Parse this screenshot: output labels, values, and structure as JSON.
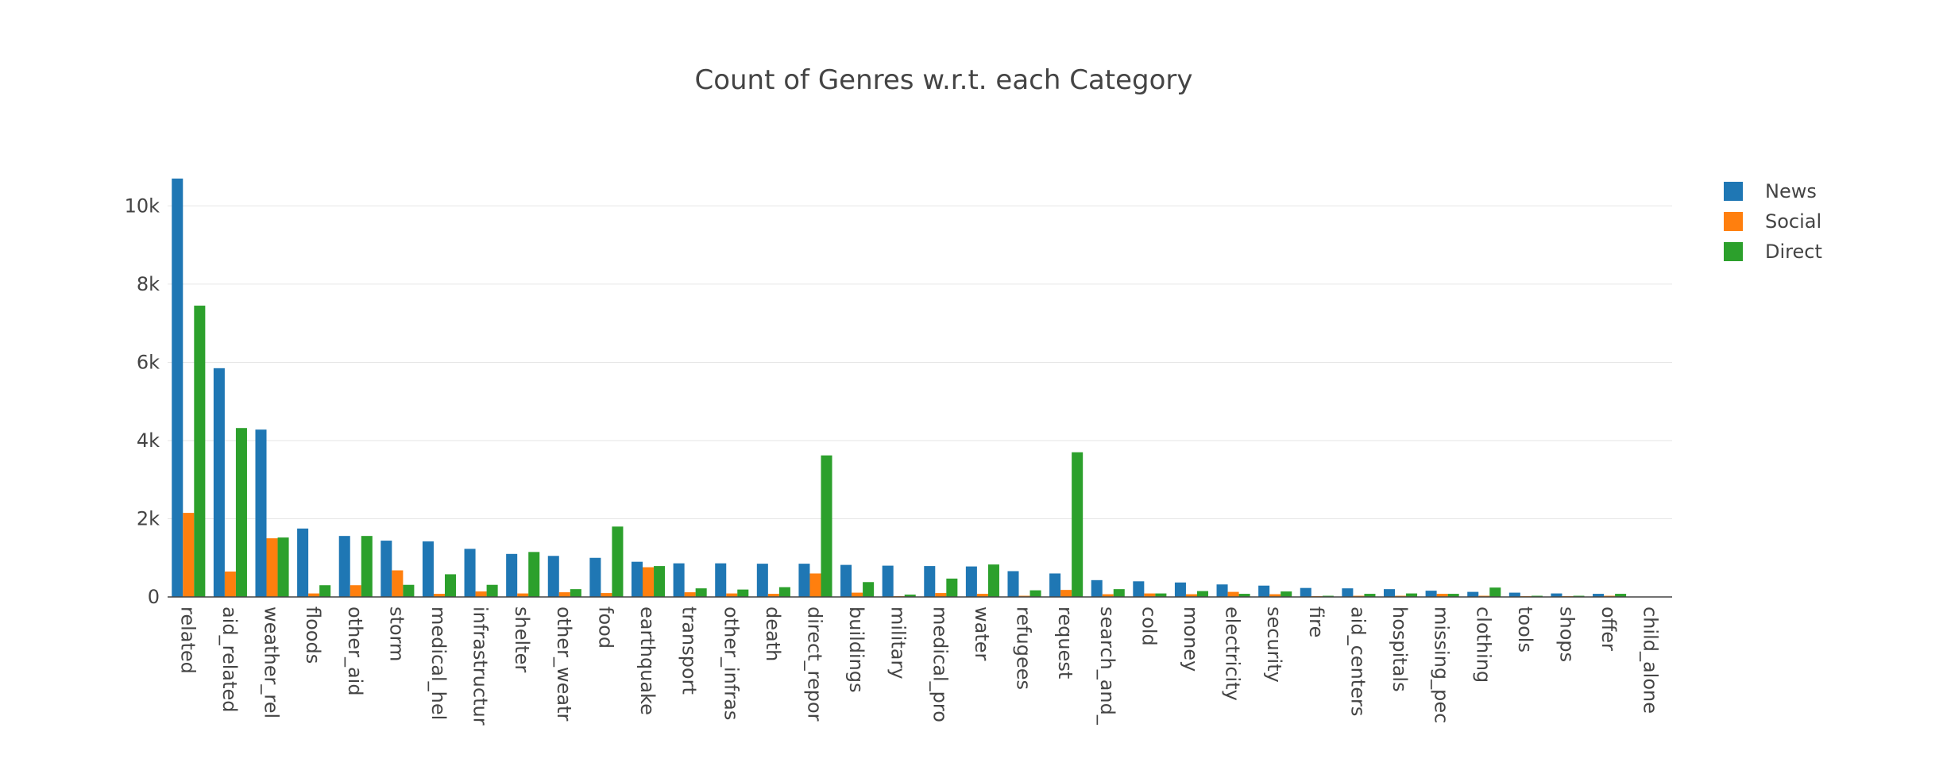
{
  "chart_data": {
    "type": "bar",
    "title": "Count of Genres w.r.t. each Category",
    "xlabel": "",
    "ylabel": "",
    "ylim": [
      0,
      10800
    ],
    "yticks": [
      0,
      2000,
      4000,
      6000,
      8000,
      10000
    ],
    "ytick_labels": [
      "0",
      "2k",
      "4k",
      "6k",
      "8k",
      "10k"
    ],
    "grid": true,
    "legend_position": "top-right",
    "categories": [
      "related",
      "aid_related",
      "weather_related",
      "floods",
      "other_aid",
      "storm",
      "medical_help",
      "infrastructure_related",
      "shelter",
      "other_weather",
      "food",
      "earthquake",
      "transport",
      "other_infrastructure",
      "death",
      "direct_report",
      "buildings",
      "military",
      "medical_products",
      "water",
      "refugees",
      "request",
      "search_and_rescue",
      "cold",
      "money",
      "electricity",
      "security",
      "fire",
      "aid_centers",
      "hospitals",
      "missing_people",
      "clothing",
      "tools",
      "shops",
      "offer",
      "child_alone"
    ],
    "category_labels": [
      "related",
      "aid_related",
      "weather_rel",
      "floods",
      "other_aid",
      "storm",
      "medical_hel",
      "infrastructur",
      "shelter",
      "other_weatr",
      "food",
      "earthquake",
      "transport",
      "other_infras",
      "death",
      "direct_repor",
      "buildings",
      "military",
      "medical_pro",
      "water",
      "refugees",
      "request",
      "search_and_",
      "cold",
      "money",
      "electricity",
      "security",
      "fire",
      "aid_centers",
      "hospitals",
      "missing_pec",
      "clothing",
      "tools",
      "shops",
      "offer",
      "child_alone"
    ],
    "series": [
      {
        "name": "News",
        "color": "#1f77b4",
        "values": [
          10700,
          5850,
          4280,
          1750,
          1560,
          1440,
          1420,
          1230,
          1100,
          1050,
          1000,
          900,
          860,
          860,
          850,
          850,
          820,
          800,
          790,
          780,
          660,
          600,
          430,
          400,
          370,
          320,
          290,
          230,
          220,
          200,
          160,
          130,
          110,
          90,
          80,
          0
        ]
      },
      {
        "name": "Social",
        "color": "#ff7f0e",
        "values": [
          2150,
          650,
          1500,
          90,
          300,
          680,
          80,
          140,
          90,
          120,
          100,
          760,
          120,
          90,
          80,
          600,
          110,
          20,
          100,
          80,
          30,
          180,
          70,
          90,
          70,
          130,
          70,
          20,
          30,
          30,
          80,
          30,
          20,
          20,
          30,
          0
        ]
      },
      {
        "name": "Direct",
        "color": "#2ca02c",
        "values": [
          7450,
          4320,
          1520,
          300,
          1560,
          310,
          580,
          310,
          1150,
          200,
          1800,
          790,
          220,
          190,
          250,
          3620,
          380,
          60,
          470,
          830,
          170,
          3700,
          200,
          90,
          150,
          80,
          140,
          30,
          80,
          90,
          80,
          240,
          30,
          30,
          80,
          0
        ]
      }
    ]
  }
}
